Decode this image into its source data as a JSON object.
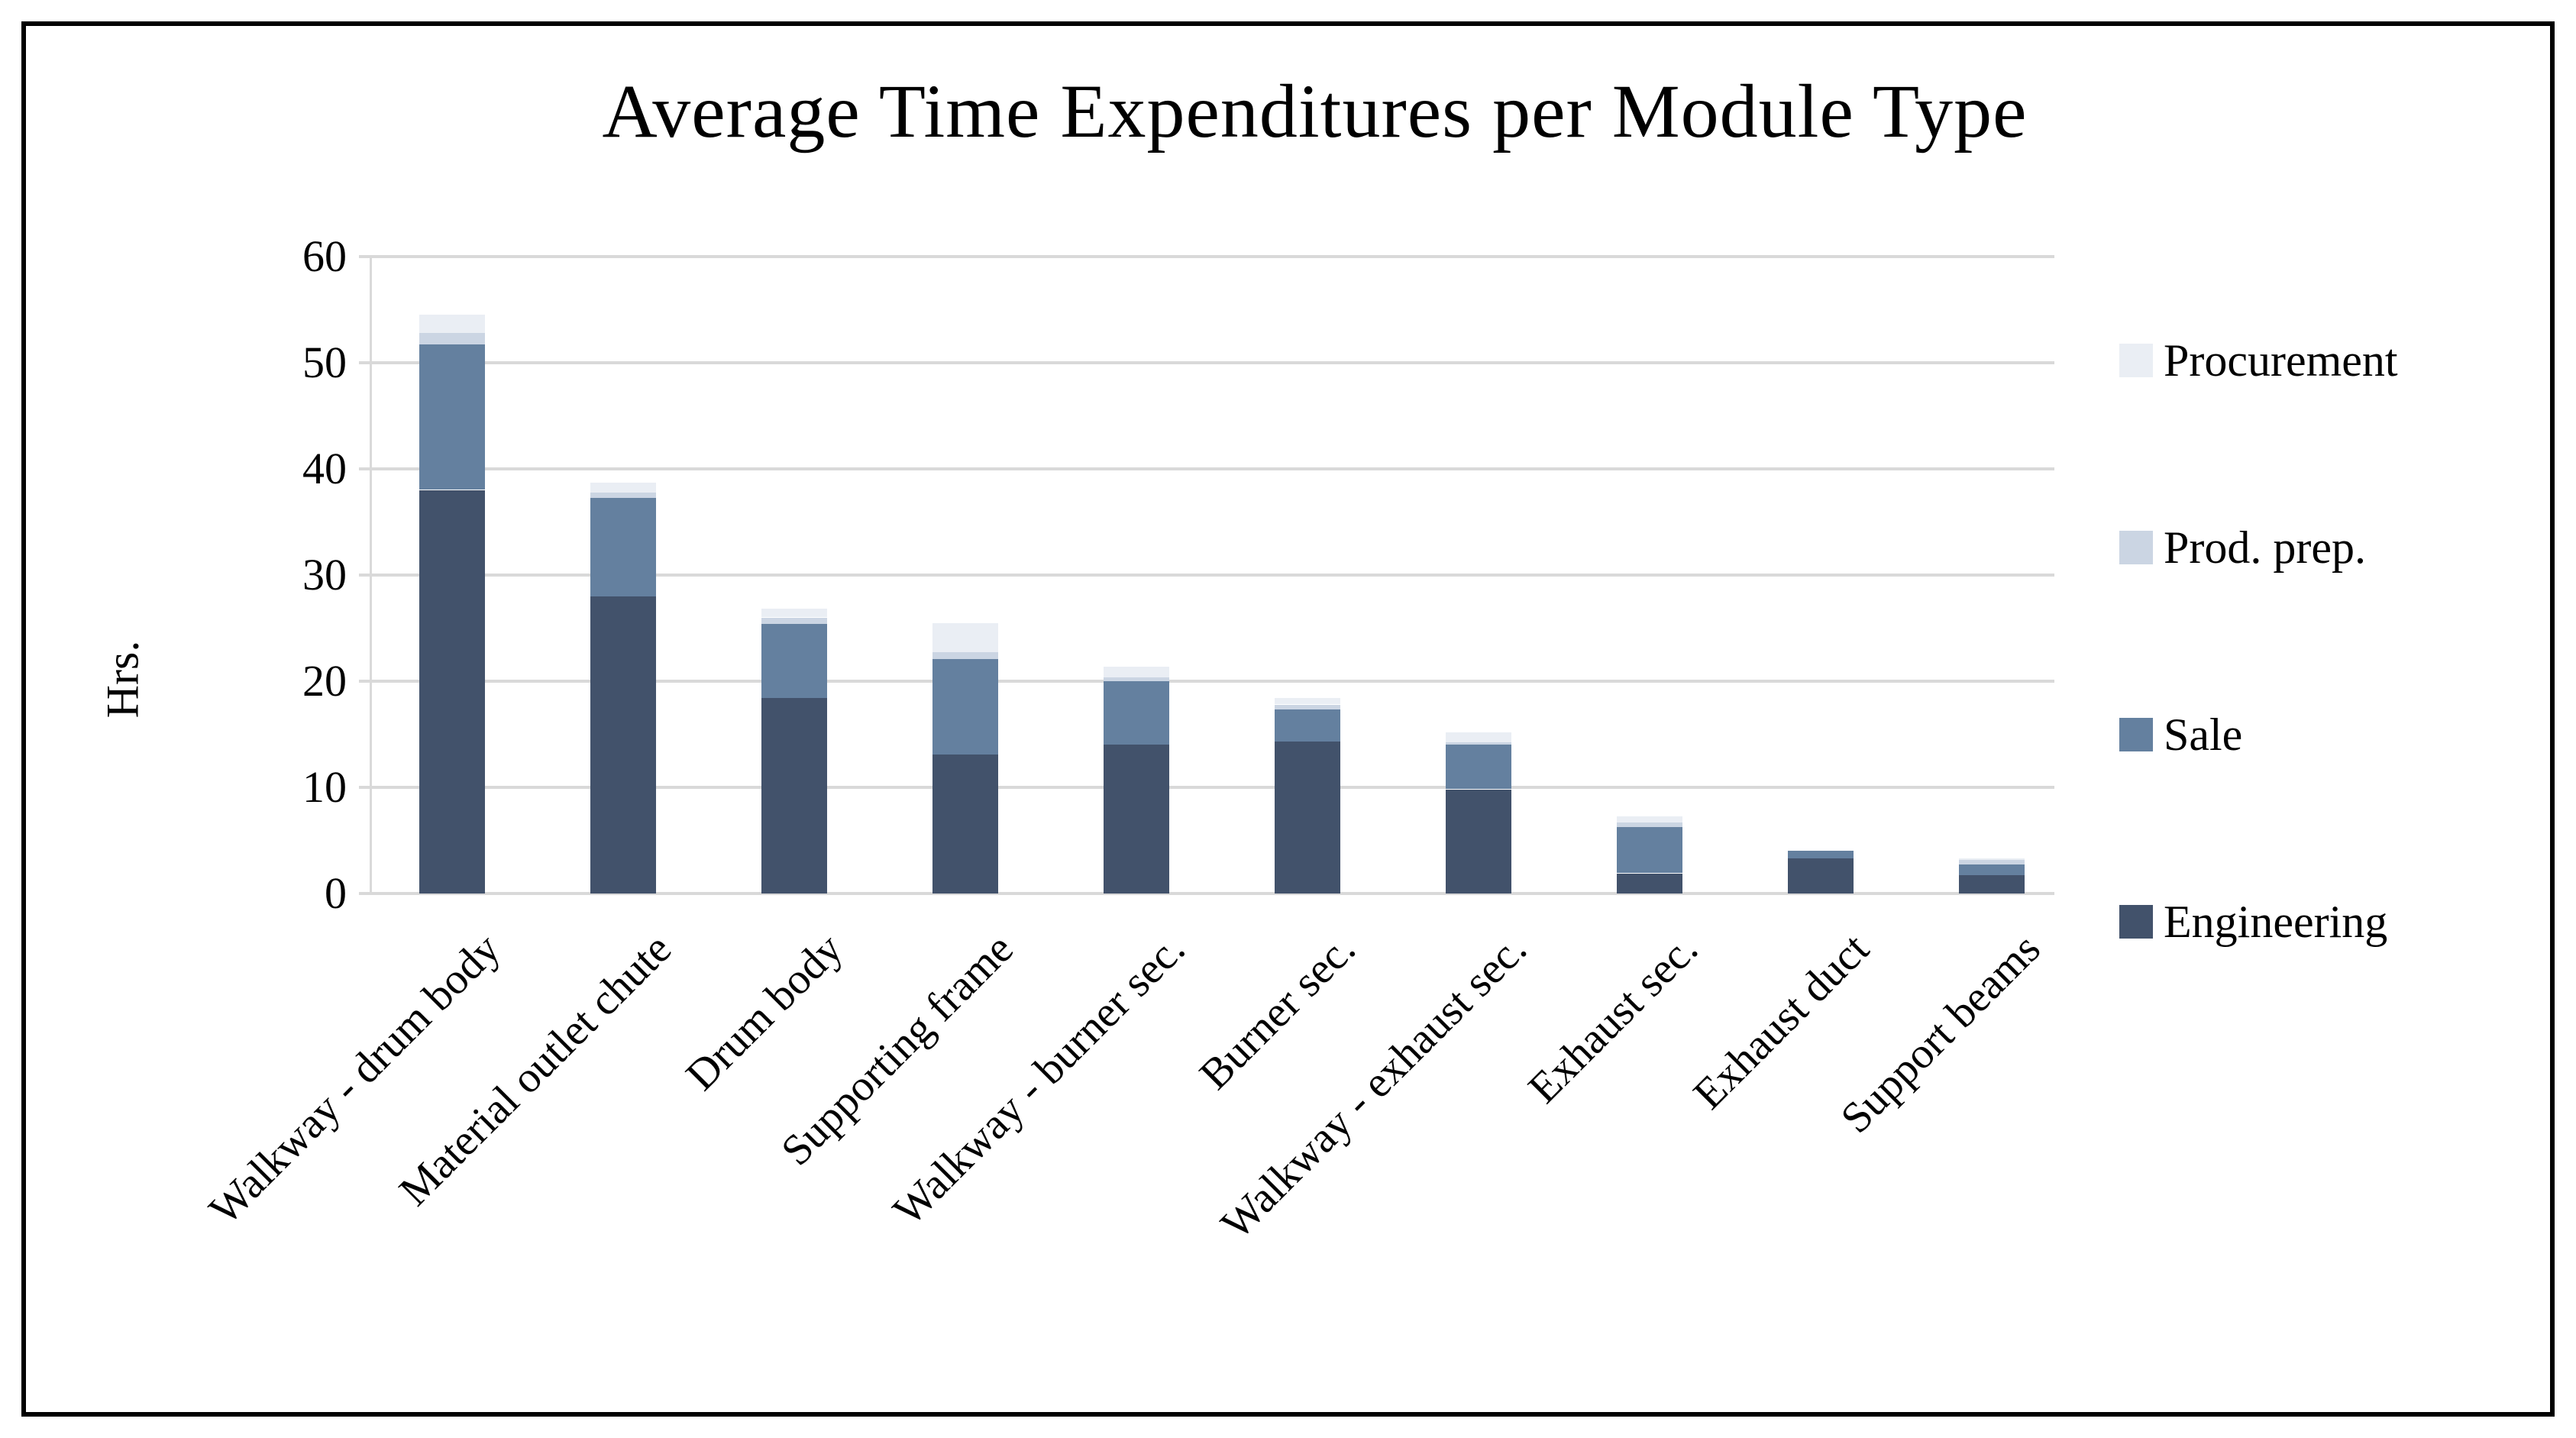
{
  "title": "Average Time Expenditures per Module Type",
  "y_axis": {
    "label": "Hrs.",
    "ticks": [
      "0",
      "10",
      "20",
      "30",
      "40",
      "50",
      "60"
    ]
  },
  "legend": {
    "position": "right",
    "order_top_to_bottom": [
      "Procurement",
      "Prod. prep.",
      "Sale",
      "Engineering"
    ]
  },
  "colors": {
    "engineering": "#42526B",
    "sale": "#64809F",
    "prod_prep": "#CBD5E3",
    "procurement": "#EAEEF4",
    "gridline": "#D9D9D9",
    "frame_border": "#000000",
    "background": "#FFFFFF"
  },
  "chart_data": {
    "type": "bar",
    "stacked": true,
    "title": "Average Time Expenditures per Module Type",
    "xlabel": "",
    "ylabel": "Hrs.",
    "ylim": [
      0,
      60
    ],
    "ytick_step": 10,
    "grid": true,
    "legend_position": "right",
    "categories": [
      "Walkway - drum body",
      "Material outlet chute",
      "Drum body",
      "Supporting frame",
      "Walkway - burner sec.",
      "Burner sec.",
      "Walkway - exhaust sec.",
      "Exhaust sec.",
      "Exhaust duct",
      "Support beams"
    ],
    "series": [
      {
        "name": "Engineering",
        "color": "#42526B",
        "values": [
          38.0,
          28.0,
          18.4,
          13.1,
          14.0,
          14.3,
          9.8,
          1.9,
          3.3,
          1.7
        ]
      },
      {
        "name": "Sale",
        "color": "#64809F",
        "values": [
          13.7,
          9.3,
          7.0,
          9.0,
          6.0,
          3.1,
          4.2,
          4.4,
          0.7,
          1.1
        ]
      },
      {
        "name": "Prod. prep.",
        "color": "#CBD5E3",
        "values": [
          1.1,
          0.5,
          0.6,
          0.7,
          0.4,
          0.4,
          0.3,
          0.4,
          0.0,
          0.4
        ]
      },
      {
        "name": "Procurement",
        "color": "#EAEEF4",
        "values": [
          1.7,
          0.9,
          0.8,
          2.7,
          1.0,
          0.6,
          0.9,
          0.6,
          0.0,
          0.1
        ]
      }
    ],
    "totals": [
      54.5,
      38.7,
      26.8,
      25.5,
      21.4,
      18.4,
      15.2,
      7.3,
      4.0,
      3.3
    ]
  }
}
